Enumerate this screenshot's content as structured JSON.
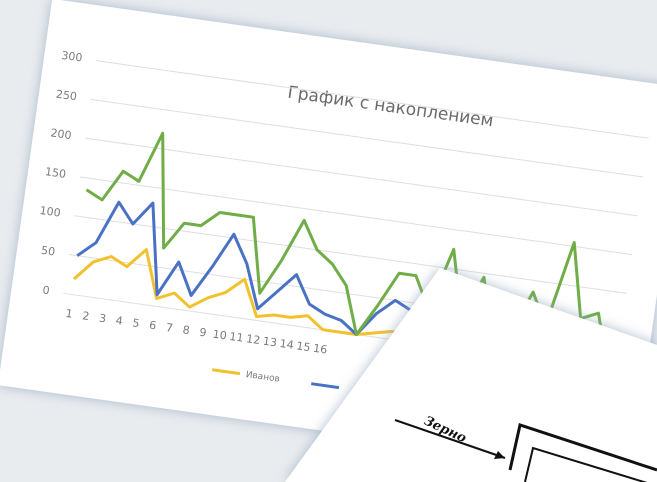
{
  "chart_data": {
    "type": "stacked_line",
    "title": "График с накоплением",
    "categories": [
      "1",
      "2",
      "3",
      "4",
      "5",
      "6",
      "7",
      "8",
      "9",
      "10",
      "11",
      "12",
      "13",
      "14",
      "15",
      "16",
      null,
      null,
      null,
      null,
      null,
      null,
      null,
      null,
      null,
      null,
      null,
      null,
      null,
      null,
      null,
      null,
      null
    ],
    "series": [
      {
        "name": "Иванов",
        "color": "#f2c12e",
        "values": [
          20,
          45,
          55,
          45,
          70,
          10,
          20,
          5,
          20,
          30,
          50,
          5,
          10,
          10,
          15,
          0,
          0,
          0,
          5,
          10,
          10,
          5,
          10,
          5,
          10,
          5,
          5,
          10,
          10,
          15,
          5,
          0,
          0
        ]
      },
      {
        "color": "#4a72c4",
        "values": [
          30,
          25,
          70,
          55,
          60,
          5,
          40,
          15,
          40,
          75,
          20,
          10,
          30,
          55,
          15,
          20,
          15,
          0,
          25,
          40,
          30,
          25,
          50,
          15,
          40,
          5,
          10,
          30,
          20,
          40,
          5,
          0,
          0
        ]
      },
      {
        "color": "#70ad47",
        "values": [
          85,
          55,
          40,
          55,
          90,
          60,
          50,
          90,
          70,
          25,
          60,
          20,
          40,
          70,
          70,
          65,
          45,
          0,
          10,
          35,
          45,
          15,
          65,
          20,
          45,
          10,
          15,
          45,
          15,
          100,
          50,
          70,
          0
        ]
      }
    ],
    "ylim": [
      0,
      300
    ],
    "yticks": [
      0,
      50,
      100,
      150,
      200,
      250,
      300
    ],
    "grid": true
  },
  "overlay": {
    "label": "Зерно"
  }
}
